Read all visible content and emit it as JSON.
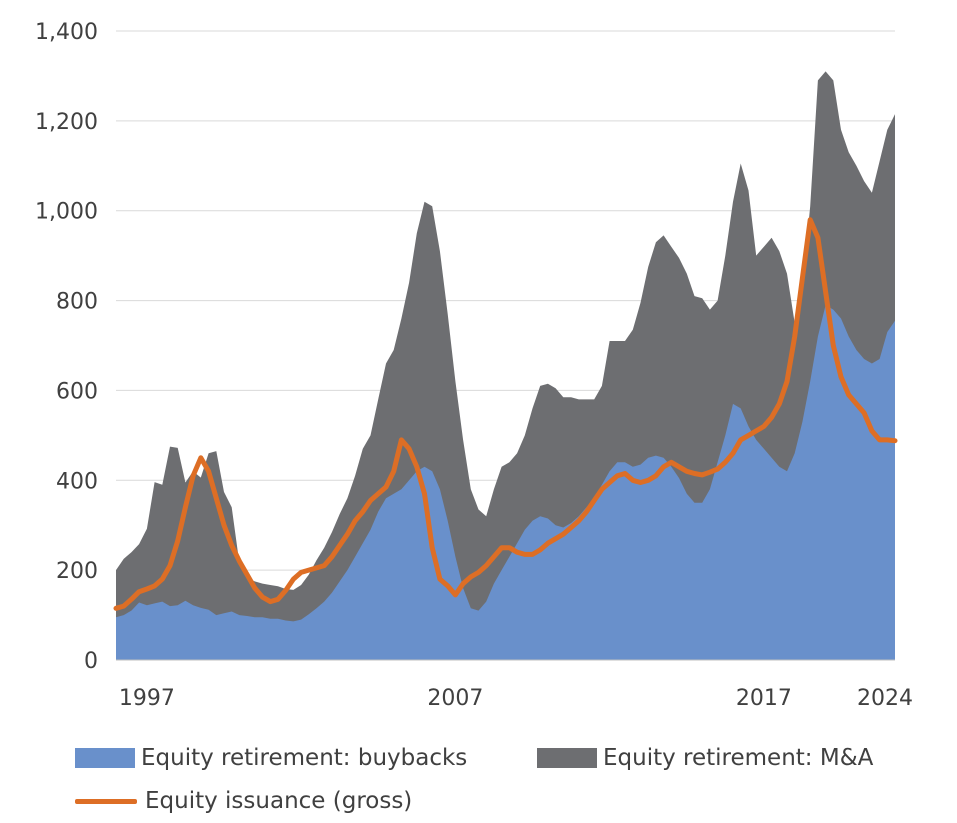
{
  "chart_data": {
    "type": "area",
    "title": "",
    "xlabel": "",
    "ylabel": "",
    "ylim": [
      0,
      1400
    ],
    "yticks": [
      0,
      200,
      400,
      600,
      800,
      1000,
      1200,
      1400
    ],
    "ytick_labels": [
      "0",
      "200",
      "400",
      "600",
      "800",
      "1,000",
      "1,200",
      "1,400"
    ],
    "xtick_labels": [
      "1997",
      "2007",
      "2017",
      "2024"
    ],
    "x_start": 1996.0,
    "x_step": 0.25,
    "grid": true,
    "legend_position": "bottom",
    "series": [
      {
        "name": "Equity retirement: buybacks",
        "kind": "stacked-area",
        "color": "#6990CB",
        "values": [
          95,
          100,
          110,
          128,
          122,
          126,
          130,
          120,
          122,
          132,
          122,
          116,
          112,
          100,
          104,
          108,
          100,
          98,
          95,
          95,
          92,
          92,
          88,
          86,
          90,
          102,
          115,
          130,
          150,
          175,
          200,
          230,
          260,
          290,
          330,
          360,
          370,
          380,
          400,
          420,
          430,
          420,
          380,
          310,
          230,
          160,
          115,
          110,
          130,
          170,
          200,
          230,
          260,
          290,
          310,
          320,
          315,
          300,
          295,
          305,
          320,
          340,
          360,
          390,
          420,
          440,
          440,
          430,
          435,
          450,
          455,
          450,
          430,
          405,
          370,
          350,
          350,
          380,
          440,
          500,
          570,
          560,
          520,
          490,
          470,
          450,
          430,
          420,
          460,
          530,
          620,
          720,
          790,
          780,
          760,
          720,
          690,
          670,
          660,
          670,
          730,
          755
        ]
      },
      {
        "name": "Equity retirement: M&A",
        "kind": "stacked-area",
        "color": "#6D6E71",
        "values": [
          105,
          125,
          130,
          130,
          170,
          270,
          260,
          355,
          350,
          263,
          298,
          290,
          348,
          365,
          270,
          232,
          115,
          85,
          80,
          75,
          75,
          72,
          70,
          70,
          77,
          88,
          107,
          120,
          135,
          150,
          160,
          180,
          210,
          210,
          250,
          300,
          320,
          380,
          440,
          530,
          590,
          590,
          530,
          460,
          390,
          330,
          265,
          225,
          190,
          210,
          230,
          210,
          200,
          210,
          250,
          290,
          300,
          305,
          290,
          280,
          260,
          240,
          220,
          220,
          290,
          270,
          270,
          305,
          360,
          425,
          475,
          495,
          490,
          490,
          490,
          460,
          455,
          400,
          360,
          400,
          450,
          545,
          525,
          410,
          450,
          490,
          480,
          440,
          290,
          300,
          390,
          570,
          520,
          510,
          420,
          410,
          410,
          396,
          380,
          440,
          450,
          460
        ]
      },
      {
        "name": "Equity issuance (gross)",
        "kind": "line",
        "color": "#DD6E25",
        "values": [
          115,
          120,
          135,
          152,
          158,
          165,
          180,
          210,
          265,
          340,
          410,
          450,
          420,
          360,
          300,
          255,
          220,
          190,
          160,
          140,
          130,
          135,
          155,
          180,
          195,
          200,
          205,
          210,
          230,
          255,
          280,
          310,
          330,
          355,
          370,
          385,
          420,
          490,
          470,
          430,
          370,
          250,
          180,
          165,
          145,
          170,
          185,
          195,
          210,
          230,
          250,
          250,
          240,
          235,
          235,
          245,
          260,
          270,
          280,
          295,
          310,
          330,
          355,
          380,
          395,
          410,
          415,
          400,
          395,
          400,
          410,
          430,
          440,
          430,
          420,
          415,
          412,
          418,
          425,
          440,
          460,
          490,
          500,
          510,
          520,
          540,
          570,
          620,
          720,
          850,
          980,
          940,
          820,
          700,
          630,
          590,
          570,
          550,
          510,
          490,
          490,
          488
        ]
      }
    ]
  },
  "legend": {
    "buybacks": "Equity retirement: buybacks",
    "ma": "Equity retirement: M&A",
    "issuance": "Equity issuance (gross)"
  },
  "colors": {
    "buybacks": "#6990CB",
    "ma": "#6D6E71",
    "issuance": "#DD6E25",
    "grid": "#D9D9D9",
    "text": "#404040"
  }
}
